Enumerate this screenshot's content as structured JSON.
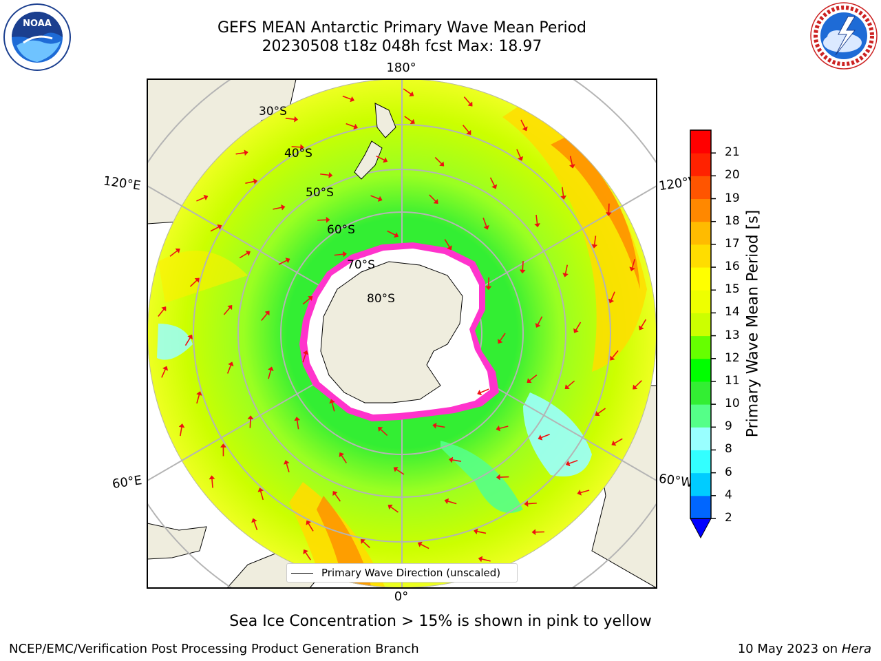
{
  "title": {
    "line1": "GEFS MEAN Antarctic Primary Wave Mean Period",
    "line2": "20230508 t18z 048h fcst   Max: 18.97"
  },
  "logos": {
    "left": "NOAA",
    "right": "NATIONAL WEATHER SERVICE"
  },
  "map": {
    "projection": "south-polar-stereographic",
    "longitude_labels": {
      "top": "180°",
      "bottom": "0°",
      "upper_left": "120°E",
      "upper_right": "120°W",
      "lower_left": "60°E",
      "lower_right": "60°W"
    },
    "latitude_labels": [
      "30°S",
      "40°S",
      "50°S",
      "60°S",
      "70°S",
      "80°S"
    ],
    "legend": "Primary Wave Direction (unscaled)",
    "colors": {
      "land": "#efedde",
      "ice_edge": "#ff33cc",
      "arrow": "#ee1111",
      "grid": "#b4b4b4"
    }
  },
  "colorbar": {
    "label": "Primary Wave Mean Period [s]",
    "ticks": [
      "2",
      "4",
      "6",
      "8",
      "9",
      "10",
      "11",
      "12",
      "13",
      "14",
      "15",
      "16",
      "17",
      "18",
      "19",
      "20",
      "21"
    ],
    "colors": [
      "#0066ff",
      "#00ccff",
      "#33ffff",
      "#99ffff",
      "#55ff88",
      "#33ee33",
      "#00ff00",
      "#66ff00",
      "#ccff00",
      "#eeff00",
      "#ffff00",
      "#ffdd00",
      "#ffbb00",
      "#ff8800",
      "#ff5500",
      "#ff2200",
      "#ff0000"
    ],
    "extend_color": "#0000ff"
  },
  "footnote": "Sea Ice Concentration > 15% is shown in pink to yellow",
  "credit": "NCEP/EMC/Verification Post Processing Product Generation Branch",
  "run_date": {
    "prefix": "10 May 2023 on",
    "machine": "Hera"
  }
}
